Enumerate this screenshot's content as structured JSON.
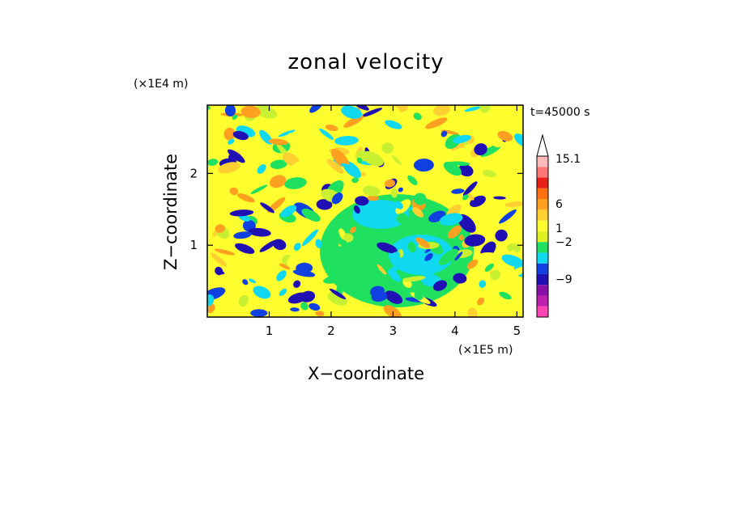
{
  "chart_data": {
    "type": "heatmap",
    "title": "zonal velocity",
    "xlabel": "X−coordinate",
    "ylabel": "Z−coordinate",
    "x_scale_note": "(×1E5 m)",
    "y_scale_note": "(×1E4 m)",
    "time_label": "t=45000 s",
    "xlim": [
      0,
      5.1
    ],
    "ylim": [
      0,
      2.95
    ],
    "x_ticks": [
      {
        "value": 1,
        "label": "1"
      },
      {
        "value": 2,
        "label": "2"
      },
      {
        "value": 3,
        "label": "3"
      },
      {
        "value": 4,
        "label": "4"
      },
      {
        "value": 5,
        "label": "5"
      }
    ],
    "y_ticks": [
      {
        "value": 1,
        "label": "1"
      },
      {
        "value": 2,
        "label": "2"
      }
    ],
    "colorbar": {
      "labels": [
        {
          "value": 15.1,
          "label": "15.1"
        },
        {
          "value": 6,
          "label": "6"
        },
        {
          "value": 1,
          "label": "1"
        },
        {
          "value": -2,
          "label": "−2"
        },
        {
          "value": -9,
          "label": "−9"
        }
      ],
      "colors": [
        "#ff44b4",
        "#c020b0",
        "#8a10a8",
        "#2010b4",
        "#1040e0",
        "#10d8f0",
        "#20e060",
        "#e0f020",
        "#ffff30",
        "#ffd030",
        "#ffa020",
        "#ff7010",
        "#e82018",
        "#ff7878",
        "#ffbaba"
      ],
      "max_arrow_color": "#ffffff"
    },
    "field_palette": [
      "#2010b4",
      "#1040e0",
      "#10d8f0",
      "#20e060",
      "#c8f030",
      "#ffff30",
      "#ffd030",
      "#ffa020"
    ]
  }
}
